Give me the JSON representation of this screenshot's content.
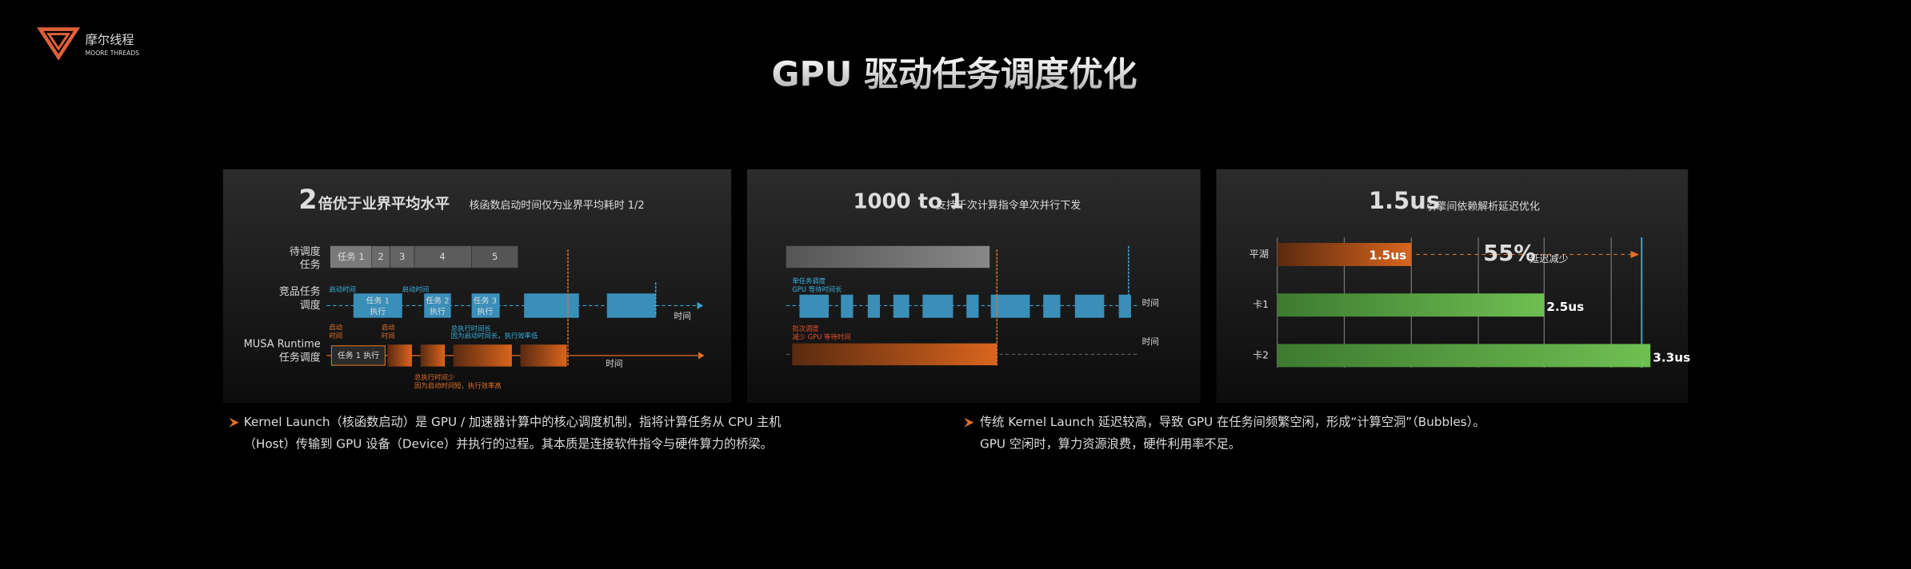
{
  "header": {
    "brand_cn": "摩尔线程",
    "brand_en": "MOORE THREADS",
    "title": "GPU 驱动任务调度优化"
  },
  "panel1": {
    "headline_number": "2",
    "headline": "倍优于业界平均水平",
    "subtitle": "核函数启动时间仅为业界平均耗时 1/2",
    "row_labels": [
      [
        "待调度",
        "任务"
      ],
      [
        "竞品任务",
        "调度"
      ],
      [
        "MUSA Runtime",
        "任务调度"
      ]
    ],
    "tasks": [
      "任务 1",
      "2",
      "3",
      "4",
      "5"
    ],
    "competitor_launch": [
      "启动时间",
      "启动时间"
    ],
    "competitor_exec": [
      [
        "任务 1",
        "执行"
      ],
      [
        "任务 2",
        "执行"
      ],
      [
        "任务 3",
        "执行"
      ]
    ],
    "competitor_note": [
      "总执行时间长",
      "因为启动时间长，执行效率低"
    ],
    "musa_launch": [
      [
        "启动",
        "时间"
      ],
      [
        "启动",
        "时间"
      ]
    ],
    "musa_exec": "任务 1 执行",
    "musa_note": [
      "总执行时间少",
      "因为启动时间短，执行效率高"
    ],
    "time_labels": [
      "时间",
      "时间"
    ]
  },
  "panel2": {
    "headline_main": "1000 to 1",
    "subtitle": "支持千次计算指令单次并行下发",
    "single_note": [
      "单任务调度",
      "GPU 等待时间长"
    ],
    "batch_note": [
      "批次调度",
      "减少 GPU 等待时间"
    ],
    "time_labels": [
      "时间",
      "时间"
    ]
  },
  "panel3": {
    "headline_main": "1.5us",
    "subtitle": "引擎间依赖解析延迟优化",
    "categories": [
      "平湖",
      "卡1",
      "卡2"
    ],
    "values": [
      1.5,
      2.5,
      3.3
    ],
    "value_labels": [
      "1.5us",
      "2.5us",
      "3.3us"
    ],
    "reduction": "55%",
    "reduction_note": "延迟减少"
  },
  "notes": {
    "left": [
      "Kernel Launch（核函数启动）是 GPU / 加速器计算中的核心调度机制，指将计算任务从 CPU 主机",
      "（Host）传输到 GPU 设备（Device）并执行的过程。其本质是连接软件指令与硬件算力的桥梁。"
    ],
    "right": [
      "传统 Kernel Launch 延迟较高，导致 GPU 在任务间频繁空闲，形成“计算空洞”（Bubbles）。",
      "GPU 空闲时，算力资源浪费，硬件利用率不足。"
    ]
  }
}
